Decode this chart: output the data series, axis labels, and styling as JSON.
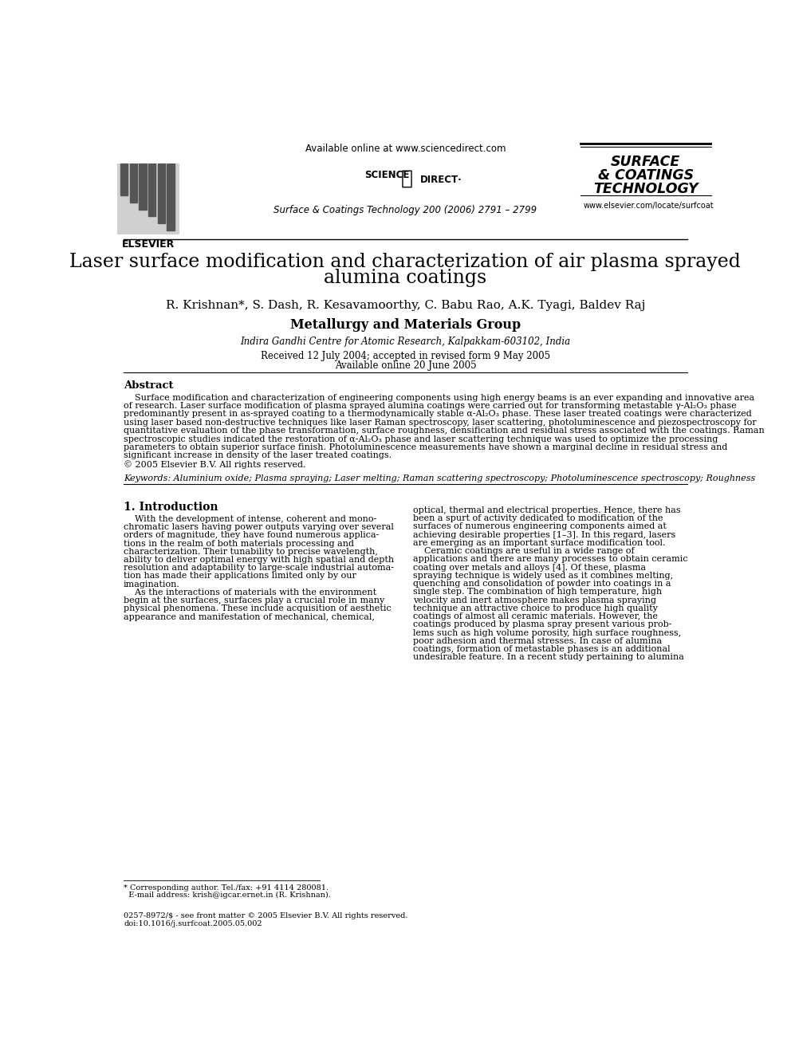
{
  "bg_color": "#ffffff",
  "title_line1": "Laser surface modification and characterization of air plasma sprayed",
  "title_line2": "alumina coatings",
  "authors": "R. Krishnan*, S. Dash, R. Kesavamoorthy, C. Babu Rao, A.K. Tyagi, Baldev Raj",
  "group": "Metallurgy and Materials Group",
  "affiliation": "Indira Gandhi Centre for Atomic Research, Kalpakkam-603102, India",
  "received": "Received 12 July 2004; accepted in revised form 9 May 2005",
  "available": "Available online 20 June 2005",
  "header_center": "Available online at www.sciencedirect.com",
  "header_journal": "Surface & Coatings Technology 200 (2006) 2791 – 2799",
  "journal_url": "www.elsevier.com/locate/surfcoat",
  "elsevier_label": "ELSEVIER",
  "abstract_title": "Abstract",
  "abstract_lines": [
    "    Surface modification and characterization of engineering components using high energy beams is an ever expanding and innovative area",
    "of research. Laser surface modification of plasma sprayed alumina coatings were carried out for transforming metastable γ-Al₂O₃ phase",
    "predominantly present in as-sprayed coating to a thermodynamically stable α-Al₂O₃ phase. These laser treated coatings were characterized",
    "using laser based non-destructive techniques like laser Raman spectroscopy, laser scattering, photoluminescence and piezospectroscopy for",
    "quantitative evaluation of the phase transformation, surface roughness, densification and residual stress associated with the coatings. Raman",
    "spectroscopic studies indicated the restoration of α-Al₂O₃ phase and laser scattering technique was used to optimize the processing",
    "parameters to obtain superior surface finish. Photoluminescence measurements have shown a marginal decline in residual stress and",
    "significant increase in density of the laser treated coatings.",
    "© 2005 Elsevier B.V. All rights reserved."
  ],
  "keywords": "Keywords: Aluminium oxide; Plasma spraying; Laser melting; Raman scattering spectroscopy; Photoluminescence spectroscopy; Roughness",
  "section1_title": "1. Introduction",
  "left_col_lines": [
    "    With the development of intense, coherent and mono-",
    "chromatic lasers having power outputs varying over several",
    "orders of magnitude, they have found numerous applica-",
    "tions in the realm of both materials processing and",
    "characterization. Their tunability to precise wavelength,",
    "ability to deliver optimal energy with high spatial and depth",
    "resolution and adaptability to large-scale industrial automa-",
    "tion has made their applications limited only by our",
    "imagination.",
    "    As the interactions of materials with the environment",
    "begin at the surfaces, surfaces play a crucial role in many",
    "physical phenomena. These include acquisition of aesthetic",
    "appearance and manifestation of mechanical, chemical,"
  ],
  "right_col_lines": [
    "optical, thermal and electrical properties. Hence, there has",
    "been a spurt of activity dedicated to modification of the",
    "surfaces of numerous engineering components aimed at",
    "achieving desirable properties [1–3]. In this regard, lasers",
    "are emerging as an important surface modification tool.",
    "    Ceramic coatings are useful in a wide range of",
    "applications and there are many processes to obtain ceramic",
    "coating over metals and alloys [4]. Of these, plasma",
    "spraying technique is widely used as it combines melting,",
    "quenching and consolidation of powder into coatings in a",
    "single step. The combination of high temperature, high",
    "velocity and inert atmosphere makes plasma spraying",
    "technique an attractive choice to produce high quality",
    "coatings of almost all ceramic materials. However, the",
    "coatings produced by plasma spray present various prob-",
    "lems such as high volume porosity, high surface roughness,",
    "poor adhesion and thermal stresses. In case of alumina",
    "coatings, formation of metastable phases is an additional",
    "undesirable feature. In a recent study pertaining to alumina"
  ],
  "footnote_star_line1": "* Corresponding author. Tel./fax: +91 4114 280081.",
  "footnote_star_line2": "  E-mail address: krish@igcar.ernet.in (R. Krishnan).",
  "footnote_issn_line1": "0257-8972/$ - see front matter © 2005 Elsevier B.V. All rights reserved.",
  "footnote_issn_line2": "doi:10.1016/j.surfcoat.2005.05.002"
}
